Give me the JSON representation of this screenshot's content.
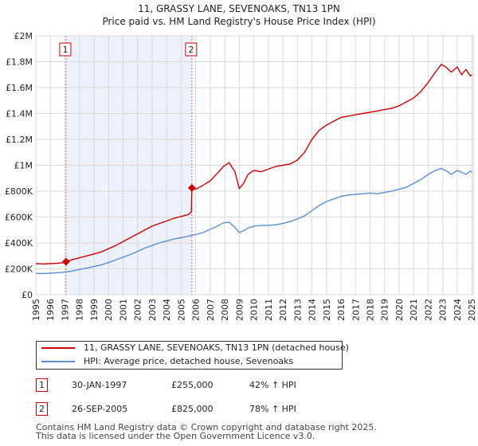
{
  "chart_data": {
    "type": "line",
    "title": "11, GRASSY LANE, SEVENOAKS, TN13 1PN",
    "subtitle": "Price paid vs. HM Land Registry's House Price Index (HPI)",
    "xlim": [
      1995,
      2025.1
    ],
    "ylim": [
      0,
      2000000
    ],
    "yticks": [
      0,
      200000,
      400000,
      600000,
      800000,
      1000000,
      1200000,
      1400000,
      1600000,
      1800000,
      2000000
    ],
    "ytick_labels": [
      "£0",
      "£200K",
      "£400K",
      "£600K",
      "£800K",
      "£1M",
      "£1.2M",
      "£1.4M",
      "£1.6M",
      "£1.8M",
      "£2M"
    ],
    "xticks": [
      "1995",
      "1996",
      "1997",
      "1998",
      "1999",
      "2000",
      "2001",
      "2002",
      "2003",
      "2004",
      "2005",
      "2006",
      "2007",
      "2008",
      "2009",
      "2010",
      "2011",
      "2012",
      "2013",
      "2014",
      "2015",
      "2016",
      "2017",
      "2018",
      "2019",
      "2020",
      "2021",
      "2022",
      "2023",
      "2024",
      "2025"
    ],
    "shaded_region": [
      1997.08,
      2005.74
    ],
    "series": [
      {
        "name": "11, GRASSY LANE, SEVENOAKS, TN13 1PN (detached house)",
        "color": "#cc0000",
        "x": [
          1995.0,
          1995.5,
          1996.0,
          1996.5,
          1997.0,
          1997.08,
          1997.5,
          1998.0,
          1998.5,
          1999.0,
          1999.5,
          2000.0,
          2000.5,
          2001.0,
          2001.5,
          2002.0,
          2002.5,
          2003.0,
          2003.5,
          2004.0,
          2004.5,
          2005.0,
          2005.5,
          2005.7,
          2005.74,
          2006.0,
          2006.5,
          2007.0,
          2007.5,
          2007.9,
          2008.3,
          2008.7,
          2009.0,
          2009.3,
          2009.6,
          2010.0,
          2010.5,
          2011.0,
          2011.5,
          2012.0,
          2012.5,
          2013.0,
          2013.5,
          2014.0,
          2014.5,
          2015.0,
          2015.5,
          2016.0,
          2016.5,
          2017.0,
          2017.5,
          2018.0,
          2018.5,
          2019.0,
          2019.5,
          2020.0,
          2020.5,
          2021.0,
          2021.5,
          2022.0,
          2022.5,
          2022.9,
          2023.2,
          2023.6,
          2024.0,
          2024.3,
          2024.6,
          2024.9,
          2025.0
        ],
        "values": [
          240000,
          237000,
          240000,
          243000,
          248000,
          255000,
          270000,
          285000,
          300000,
          315000,
          330000,
          355000,
          380000,
          410000,
          440000,
          470000,
          500000,
          530000,
          550000,
          570000,
          590000,
          605000,
          620000,
          640000,
          825000,
          815000,
          845000,
          880000,
          940000,
          990000,
          1020000,
          950000,
          820000,
          860000,
          930000,
          960000,
          950000,
          970000,
          990000,
          1000000,
          1010000,
          1040000,
          1100000,
          1200000,
          1270000,
          1310000,
          1340000,
          1370000,
          1380000,
          1390000,
          1400000,
          1410000,
          1420000,
          1430000,
          1440000,
          1460000,
          1490000,
          1520000,
          1570000,
          1640000,
          1720000,
          1780000,
          1760000,
          1720000,
          1760000,
          1700000,
          1740000,
          1690000,
          1700000
        ]
      },
      {
        "name": "HPI: Average price, detached house, Sevenoaks",
        "color": "#5b8fd4",
        "x": [
          1995.0,
          1995.5,
          1996.0,
          1996.5,
          1997.0,
          1997.5,
          1998.0,
          1998.5,
          1999.0,
          1999.5,
          2000.0,
          2000.5,
          2001.0,
          2001.5,
          2002.0,
          2002.5,
          2003.0,
          2003.5,
          2004.0,
          2004.5,
          2005.0,
          2005.5,
          2006.0,
          2006.5,
          2007.0,
          2007.5,
          2007.9,
          2008.3,
          2008.7,
          2009.0,
          2009.3,
          2009.6,
          2010.0,
          2010.5,
          2011.0,
          2011.5,
          2012.0,
          2012.5,
          2013.0,
          2013.5,
          2014.0,
          2014.5,
          2015.0,
          2015.5,
          2016.0,
          2016.5,
          2017.0,
          2017.5,
          2018.0,
          2018.5,
          2019.0,
          2019.5,
          2020.0,
          2020.5,
          2021.0,
          2021.5,
          2022.0,
          2022.5,
          2022.9,
          2023.2,
          2023.6,
          2024.0,
          2024.3,
          2024.6,
          2024.9,
          2025.0
        ],
        "values": [
          165000,
          163000,
          166000,
          170000,
          175000,
          183000,
          195000,
          205000,
          218000,
          230000,
          248000,
          268000,
          290000,
          310000,
          335000,
          360000,
          380000,
          400000,
          415000,
          430000,
          440000,
          452000,
          465000,
          480000,
          505000,
          530000,
          555000,
          560000,
          520000,
          480000,
          495000,
          515000,
          530000,
          535000,
          535000,
          540000,
          550000,
          565000,
          585000,
          610000,
          650000,
          690000,
          720000,
          740000,
          760000,
          770000,
          775000,
          780000,
          785000,
          780000,
          790000,
          800000,
          815000,
          830000,
          860000,
          890000,
          930000,
          960000,
          975000,
          960000,
          930000,
          960000,
          945000,
          930000,
          955000,
          945000
        ]
      }
    ],
    "annotations": [
      {
        "num": "1",
        "x": 1997.08,
        "y": 255000,
        "date": "30-JAN-1997",
        "price": "£255,000",
        "hpi": "42% ↑ HPI"
      },
      {
        "num": "2",
        "x": 2005.74,
        "y": 825000,
        "date": "26-SEP-2005",
        "price": "£825,000",
        "hpi": "78% ↑ HPI"
      }
    ],
    "legend": "bottom"
  },
  "footer": {
    "line1": "Contains HM Land Registry data © Crown copyright and database right 2025.",
    "line2": "This data is licensed under the Open Government Licence v3.0."
  }
}
